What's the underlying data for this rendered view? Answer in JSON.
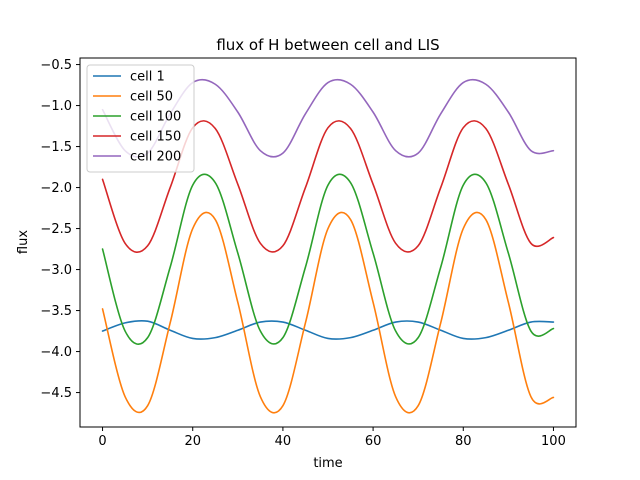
{
  "chart_data": {
    "type": "line",
    "title": "flux of H between cell and LIS",
    "xlabel": "time",
    "ylabel": "flux",
    "xlim": [
      -5,
      105
    ],
    "ylim": [
      -4.92,
      -0.42
    ],
    "xticks": [
      0,
      20,
      40,
      60,
      80,
      100
    ],
    "yticks": [
      -4.5,
      -4.0,
      -3.5,
      -3.0,
      -2.5,
      -2.0,
      -1.5,
      -1.0,
      -0.5
    ],
    "ytick_labels": [
      "−4.5",
      "−4.0",
      "−3.5",
      "−3.0",
      "−2.5",
      "−2.0",
      "−1.5",
      "−1.0",
      "−0.5"
    ],
    "grid": false,
    "legend_position": "upper-left",
    "x": [
      0,
      5,
      10,
      15,
      20,
      25,
      30,
      35,
      40,
      45,
      50,
      55,
      60,
      65,
      70,
      75,
      80,
      85,
      90,
      95,
      100
    ],
    "series": [
      {
        "name": "cell 1",
        "color": "#1f77b4",
        "values": [
          -3.75,
          -3.65,
          -3.63,
          -3.74,
          -3.84,
          -3.83,
          -3.74,
          -3.64,
          -3.64,
          -3.74,
          -3.84,
          -3.83,
          -3.74,
          -3.64,
          -3.64,
          -3.74,
          -3.84,
          -3.83,
          -3.74,
          -3.64,
          -3.64
        ]
      },
      {
        "name": "cell 50",
        "color": "#ff7f0e",
        "values": [
          -3.48,
          -4.55,
          -4.66,
          -3.65,
          -2.5,
          -2.39,
          -3.4,
          -4.55,
          -4.66,
          -3.65,
          -2.5,
          -2.39,
          -3.4,
          -4.55,
          -4.66,
          -3.65,
          -2.5,
          -2.39,
          -3.4,
          -4.55,
          -4.56
        ]
      },
      {
        "name": "cell 100",
        "color": "#2ca02c",
        "values": [
          -2.75,
          -3.75,
          -3.83,
          -2.97,
          -1.97,
          -1.94,
          -2.8,
          -3.75,
          -3.83,
          -2.97,
          -1.97,
          -1.94,
          -2.8,
          -3.75,
          -3.83,
          -2.97,
          -1.97,
          -1.94,
          -2.8,
          -3.75,
          -3.72
        ]
      },
      {
        "name": "cell 150",
        "color": "#d62728",
        "values": [
          -1.9,
          -2.68,
          -2.71,
          -2.0,
          -1.27,
          -1.28,
          -1.96,
          -2.68,
          -2.71,
          -2.0,
          -1.27,
          -1.28,
          -1.96,
          -2.68,
          -2.71,
          -2.0,
          -1.27,
          -1.28,
          -1.96,
          -2.68,
          -2.61
        ]
      },
      {
        "name": "cell 200",
        "color": "#9467bd",
        "values": [
          -1.05,
          -1.55,
          -1.58,
          -1.1,
          -0.72,
          -0.74,
          -1.08,
          -1.55,
          -1.58,
          -1.1,
          -0.72,
          -0.74,
          -1.08,
          -1.55,
          -1.58,
          -1.1,
          -0.72,
          -0.74,
          -1.08,
          -1.55,
          -1.55
        ]
      }
    ]
  }
}
